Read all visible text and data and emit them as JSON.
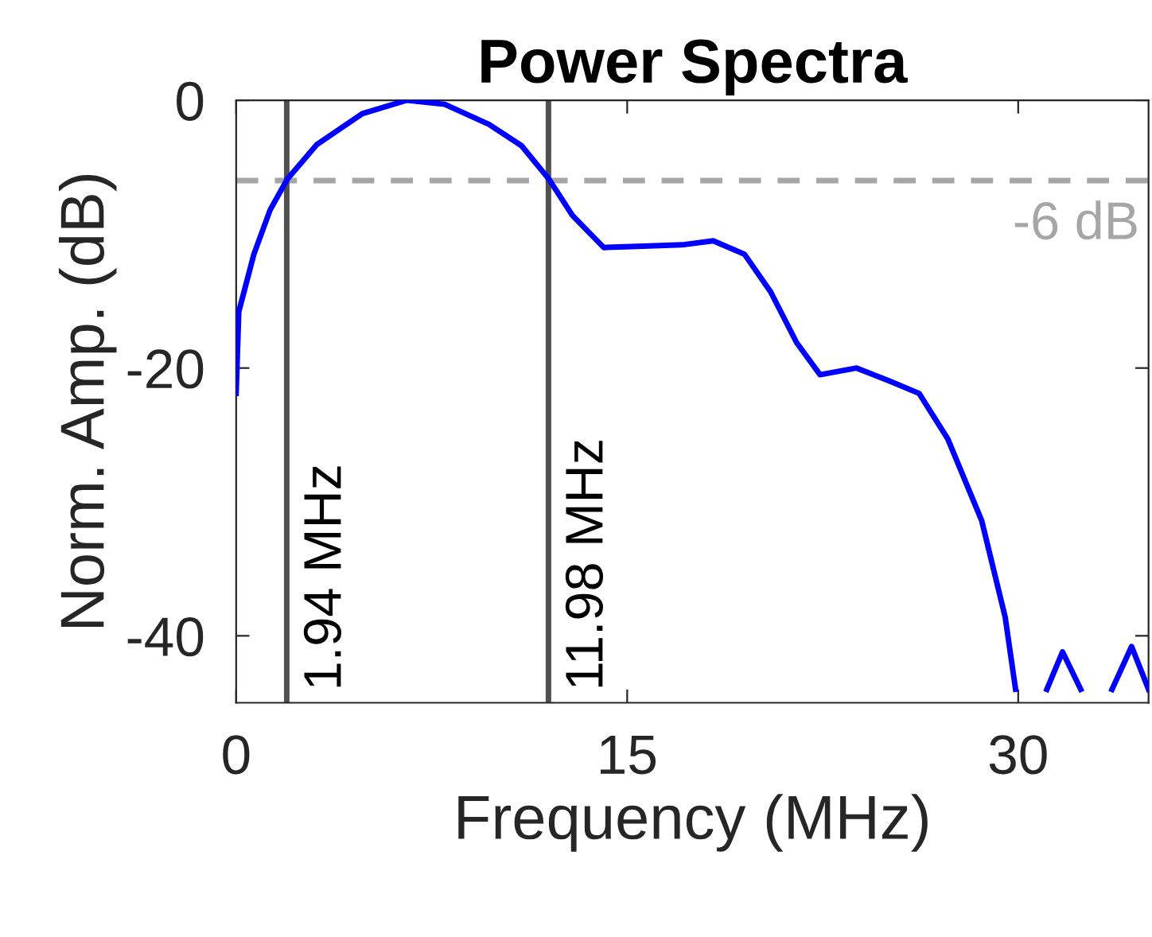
{
  "chart_data": {
    "type": "line",
    "title": "Power Spectra",
    "xlabel": "Frequency (MHz)",
    "ylabel": "Norm. Amp. (dB)",
    "x": [
      0,
      0.1,
      0.68,
      1.3,
      1.96,
      3.1,
      4.84,
      6.55,
      8.0,
      9.7,
      10.95,
      12.0,
      12.9,
      14.1,
      15.6,
      17.1,
      18.3,
      19.5,
      20.5,
      21.5,
      22.4,
      23.8,
      25.1,
      26.2,
      27.3,
      28.6,
      29.5,
      29.9,
      30.5,
      31.1,
      31.7,
      32.4,
      33.0,
      33.6,
      34.35,
      35.0
    ],
    "series": [
      {
        "color": "#0000ff",
        "values": [
          -21.9,
          -15.8,
          -11.5,
          -8.2,
          -5.9,
          -3.3,
          -1,
          0,
          -0.3,
          -1.8,
          -3.4,
          -5.9,
          -8.6,
          -11.0,
          -10.9,
          -10.8,
          -10.5,
          -11.5,
          -14.3,
          -18.1,
          -20.5,
          -20.0,
          -21.0,
          -21.9,
          -25.3,
          -31.4,
          -38.6,
          -44,
          null,
          -44,
          -41.2,
          -44,
          null,
          -44,
          -40.8,
          -44
        ]
      }
    ],
    "xlim": [
      0,
      35
    ],
    "ylim": [
      -45,
      0
    ],
    "xticks": [
      0,
      15,
      30
    ],
    "yticks": [
      {
        "value": 0,
        "label": "0"
      },
      {
        "value": -20,
        "label": "-20"
      },
      {
        "value": -40,
        "label": "-40"
      }
    ],
    "ref_lines": [
      {
        "axis": "y",
        "value": -6,
        "label": "-6 dB",
        "color": "#a6a6a6",
        "line_style": "dashed"
      },
      {
        "axis": "x",
        "value": 1.94,
        "label": "1.94 MHz",
        "color": "#505050",
        "line_style": "solid"
      },
      {
        "axis": "x",
        "value": 11.98,
        "label": "11.98 MHz",
        "color": "#505050",
        "line_style": "solid"
      }
    ],
    "grid": false,
    "legend": false,
    "line_style": "solid",
    "marker": "none"
  }
}
